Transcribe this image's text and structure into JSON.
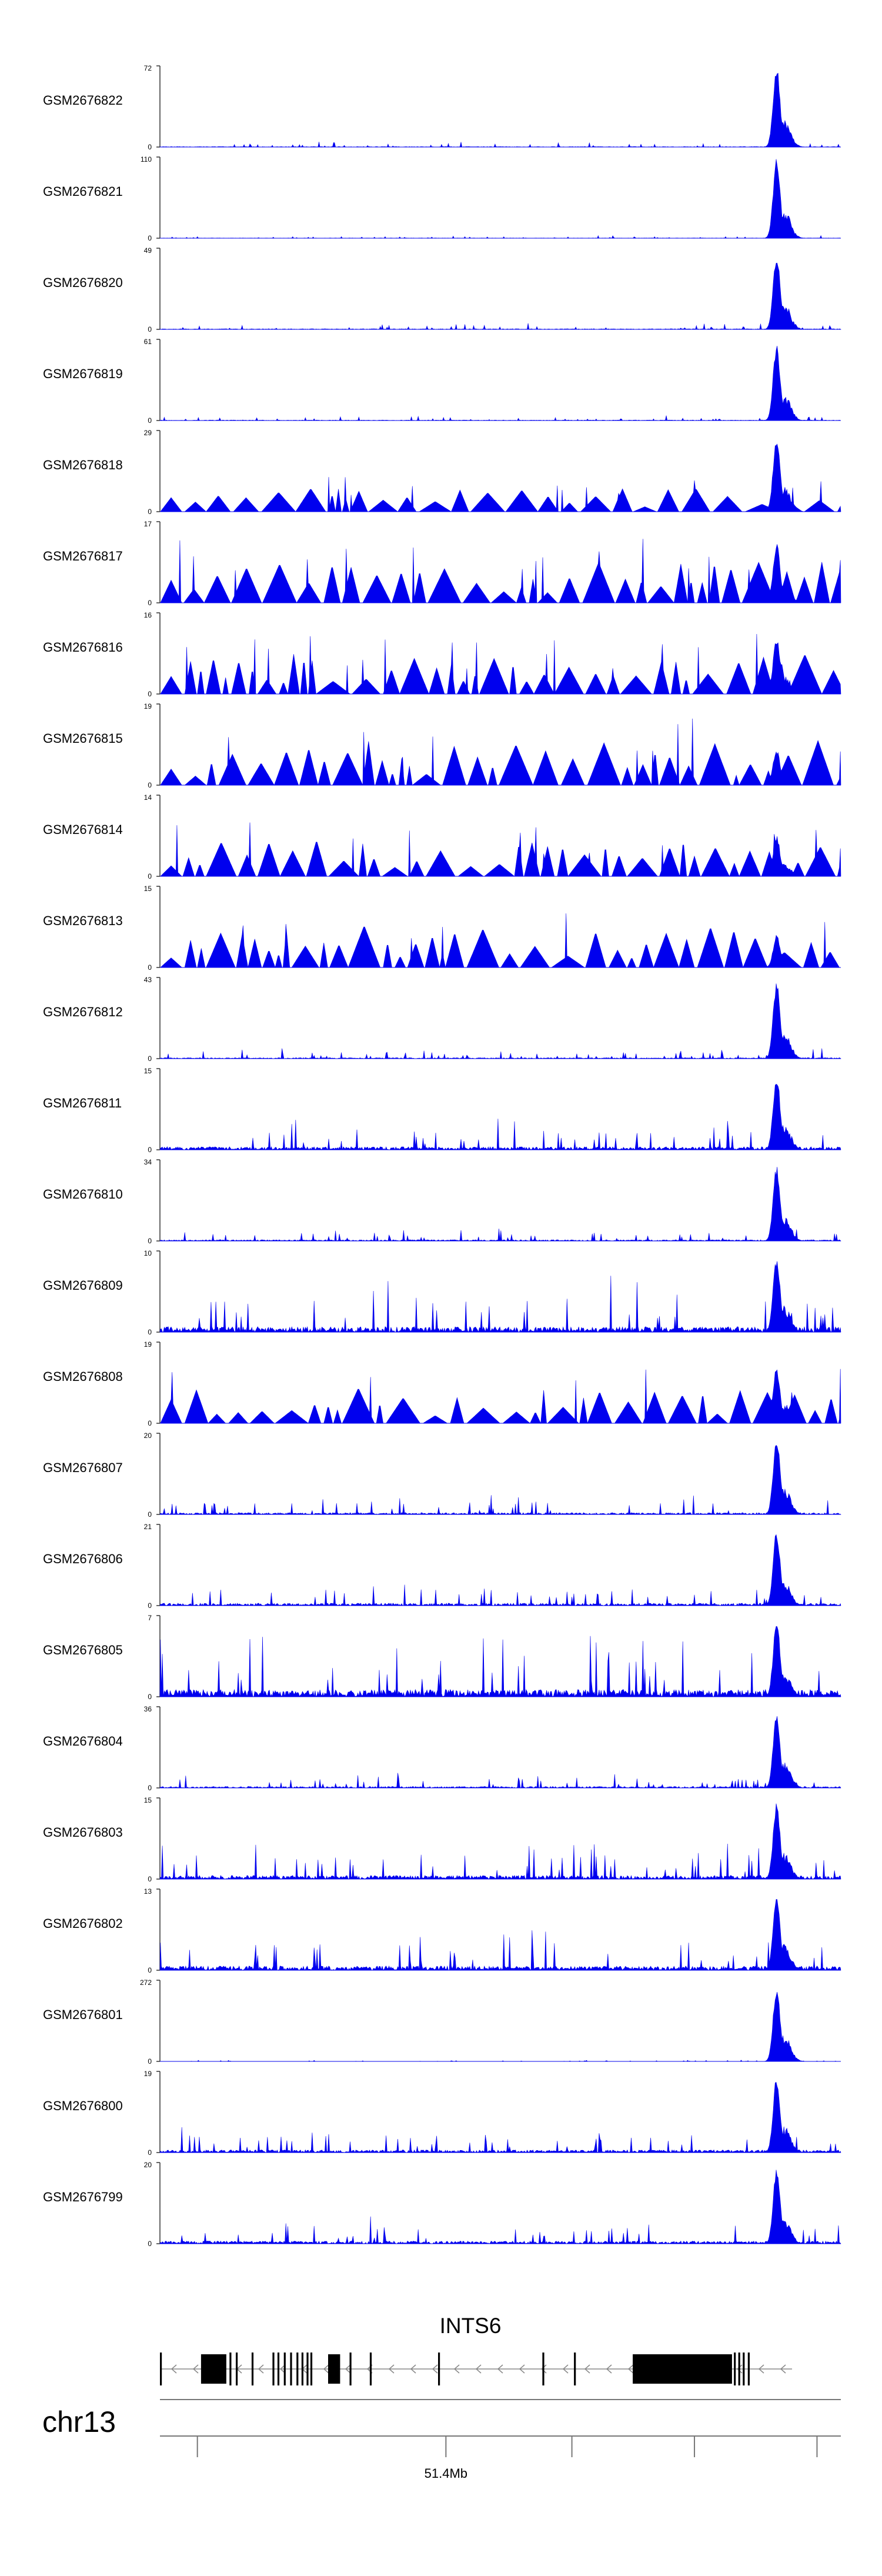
{
  "chart_data": {
    "type": "area",
    "colors": {
      "track": "#0000ee",
      "axis": "#333333",
      "gene": "#000000"
    },
    "tracks": [
      {
        "name": "GSM2676822",
        "ymax": 72,
        "style": "spiky",
        "noise": 0.04,
        "peak": 1.0,
        "seed": 822
      },
      {
        "name": "GSM2676821",
        "ymax": 110,
        "style": "spiky",
        "noise": 0.02,
        "peak": 1.0,
        "seed": 821
      },
      {
        "name": "GSM2676820",
        "ymax": 49,
        "style": "spiky",
        "noise": 0.05,
        "peak": 0.95,
        "seed": 820
      },
      {
        "name": "GSM2676819",
        "ymax": 61,
        "style": "spiky",
        "noise": 0.04,
        "peak": 0.95,
        "seed": 819
      },
      {
        "name": "GSM2676818",
        "ymax": 29,
        "style": "triangles",
        "noise": 0.3,
        "peak": 0.95,
        "seed": 818
      },
      {
        "name": "GSM2676817",
        "ymax": 17,
        "style": "triangles",
        "noise": 0.55,
        "peak": 0.75,
        "seed": 817
      },
      {
        "name": "GSM2676816",
        "ymax": 16,
        "style": "triangles",
        "noise": 0.5,
        "peak": 0.7,
        "seed": 816
      },
      {
        "name": "GSM2676815",
        "ymax": 19,
        "style": "triangles",
        "noise": 0.55,
        "peak": 0.45,
        "seed": 815
      },
      {
        "name": "GSM2676814",
        "ymax": 14,
        "style": "triangles",
        "noise": 0.45,
        "peak": 0.5,
        "seed": 814
      },
      {
        "name": "GSM2676813",
        "ymax": 15,
        "style": "triangles",
        "noise": 0.55,
        "peak": 0.4,
        "seed": 813
      },
      {
        "name": "GSM2676812",
        "ymax": 43,
        "style": "spiky",
        "noise": 0.08,
        "peak": 0.95,
        "seed": 812
      },
      {
        "name": "GSM2676811",
        "ymax": 15,
        "style": "spiky",
        "noise": 0.25,
        "peak": 0.95,
        "seed": 811
      },
      {
        "name": "GSM2676810",
        "ymax": 34,
        "style": "spiky",
        "noise": 0.1,
        "peak": 0.95,
        "seed": 810
      },
      {
        "name": "GSM2676809",
        "ymax": 10,
        "style": "spiky",
        "noise": 0.45,
        "peak": 0.95,
        "seed": 809
      },
      {
        "name": "GSM2676808",
        "ymax": 19,
        "style": "triangles",
        "noise": 0.45,
        "peak": 0.7,
        "seed": 808
      },
      {
        "name": "GSM2676807",
        "ymax": 20,
        "style": "spiky",
        "noise": 0.15,
        "peak": 0.95,
        "seed": 807
      },
      {
        "name": "GSM2676806",
        "ymax": 21,
        "style": "spiky",
        "noise": 0.2,
        "peak": 0.95,
        "seed": 806
      },
      {
        "name": "GSM2676805",
        "ymax": 7,
        "style": "spiky",
        "noise": 0.6,
        "peak": 0.95,
        "seed": 805
      },
      {
        "name": "GSM2676804",
        "ymax": 36,
        "style": "spiky",
        "noise": 0.12,
        "peak": 0.95,
        "seed": 804
      },
      {
        "name": "GSM2676803",
        "ymax": 15,
        "style": "spiky",
        "noise": 0.3,
        "peak": 0.95,
        "seed": 803
      },
      {
        "name": "GSM2676802",
        "ymax": 13,
        "style": "spiky",
        "noise": 0.35,
        "peak": 0.95,
        "seed": 802
      },
      {
        "name": "GSM2676801",
        "ymax": 272,
        "style": "spiky",
        "noise": 0.01,
        "peak": 0.95,
        "seed": 801
      },
      {
        "name": "GSM2676800",
        "ymax": 19,
        "style": "spiky",
        "noise": 0.22,
        "peak": 0.95,
        "seed": 800
      },
      {
        "name": "GSM2676799",
        "ymax": 20,
        "style": "spiky",
        "noise": 0.22,
        "peak": 0.95,
        "seed": 799
      }
    ],
    "y_min_label": "0",
    "gene": {
      "name": "INTS6",
      "strand": "-",
      "exons": [
        [
          0.0,
          0.003
        ],
        [
          0.065,
          0.105
        ],
        [
          0.11,
          0.113
        ],
        [
          0.12,
          0.123
        ],
        [
          0.145,
          0.148
        ],
        [
          0.178,
          0.181
        ],
        [
          0.186,
          0.189
        ],
        [
          0.196,
          0.199
        ],
        [
          0.206,
          0.209
        ],
        [
          0.216,
          0.219
        ],
        [
          0.224,
          0.227
        ],
        [
          0.232,
          0.235
        ],
        [
          0.238,
          0.241
        ],
        [
          0.266,
          0.285
        ],
        [
          0.3,
          0.303
        ],
        [
          0.332,
          0.335
        ],
        [
          0.44,
          0.443
        ],
        [
          0.605,
          0.608
        ],
        [
          0.655,
          0.658
        ],
        [
          0.748,
          0.905
        ],
        [
          0.908,
          0.911
        ],
        [
          0.915,
          0.918
        ],
        [
          0.922,
          0.925
        ],
        [
          0.93,
          0.933
        ]
      ]
    },
    "chromosome": "chr13",
    "axis_ticks": [
      0.055,
      0.42,
      0.605,
      0.785,
      0.965
    ],
    "axis_labels": [
      {
        "pos": 0.42,
        "text": "51.4Mb"
      }
    ]
  }
}
